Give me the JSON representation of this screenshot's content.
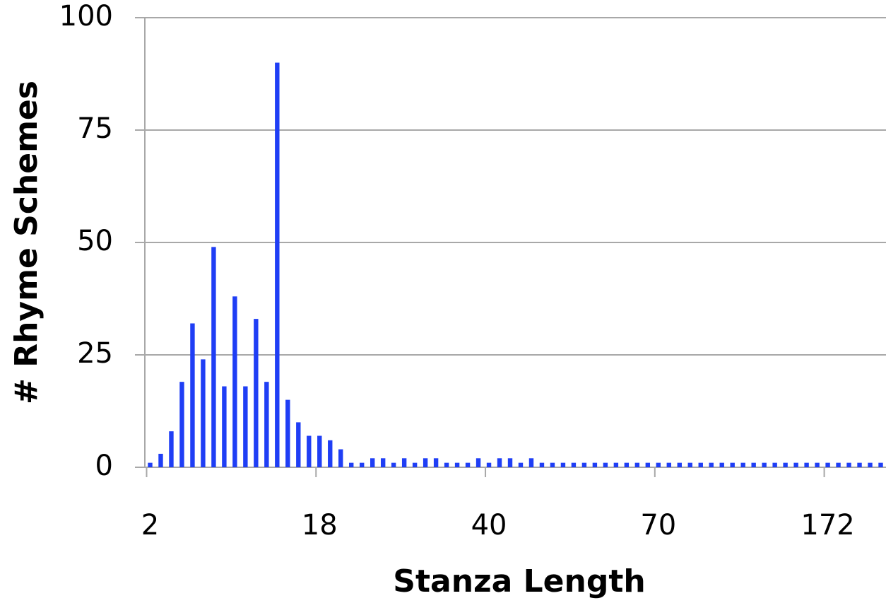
{
  "chart_data": {
    "type": "bar",
    "xlabel": "Stanza Length",
    "ylabel": "# Rhyme Schemes",
    "categories": [
      "2",
      null,
      null,
      null,
      null,
      null,
      null,
      null,
      null,
      null,
      null,
      null,
      null,
      null,
      null,
      null,
      "18",
      null,
      null,
      null,
      null,
      null,
      null,
      null,
      null,
      null,
      null,
      null,
      null,
      null,
      null,
      null,
      "40",
      null,
      null,
      null,
      null,
      null,
      null,
      null,
      null,
      null,
      null,
      null,
      null,
      null,
      null,
      null,
      "70",
      null,
      null,
      null,
      null,
      null,
      null,
      null,
      null,
      null,
      null,
      null,
      null,
      null,
      null,
      null,
      "172",
      null,
      null,
      null,
      null,
      null
    ],
    "values": [
      1,
      3,
      8,
      19,
      32,
      24,
      49,
      18,
      38,
      18,
      33,
      19,
      90,
      15,
      10,
      7,
      7,
      6,
      4,
      1,
      1,
      2,
      2,
      1,
      2,
      1,
      2,
      2,
      1,
      1,
      1,
      2,
      1,
      2,
      2,
      1,
      2,
      1,
      1,
      1,
      1,
      1,
      1,
      1,
      1,
      1,
      1,
      1,
      1,
      1,
      1,
      1,
      1,
      1,
      1,
      1,
      1,
      1,
      1,
      1,
      1,
      1,
      1,
      1,
      1,
      1,
      1,
      1,
      1,
      1
    ],
    "color": "#1f3ef5",
    "ylim": [
      0,
      100
    ],
    "yticks": [
      0,
      25,
      50,
      75,
      100
    ],
    "grid": true
  }
}
